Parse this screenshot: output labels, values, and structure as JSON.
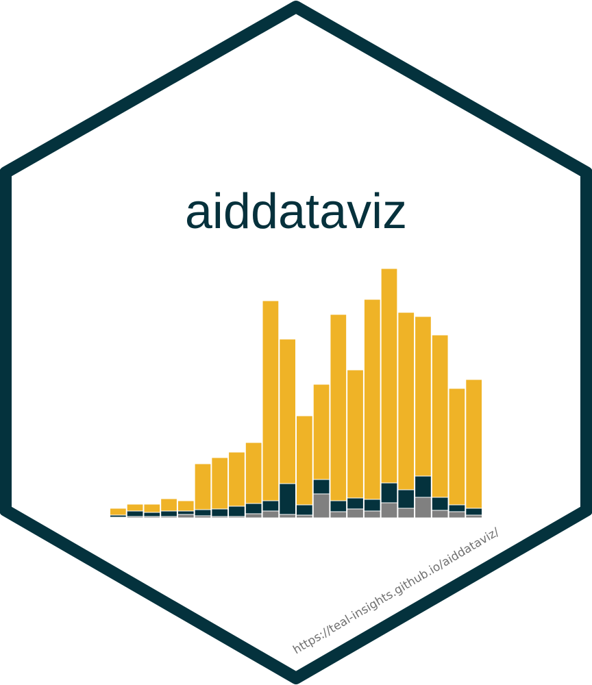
{
  "chart_data": {
    "type": "bar",
    "stacked": true,
    "title": "aiddataviz",
    "annotation": "https://teal-insights.github.io/aiddataviz/",
    "categories": [
      null,
      null,
      null,
      null,
      null,
      null,
      null,
      null,
      null,
      null,
      null,
      null,
      null,
      null,
      null,
      null,
      null,
      null,
      null,
      null,
      null,
      null
    ],
    "series": [
      {
        "color": "#808080",
        "values": [
          1,
          2,
          2,
          2,
          5,
          3,
          2,
          2,
          6,
          10,
          5,
          4,
          35,
          9,
          13,
          10,
          22,
          14,
          30,
          11,
          9,
          4
        ]
      },
      {
        "color": "#04323d",
        "values": [
          3,
          8,
          6,
          8,
          5,
          9,
          11,
          15,
          15,
          15,
          45,
          15,
          21,
          16,
          16,
          17,
          29,
          27,
          31,
          19,
          10,
          10
        ]
      },
      {
        "color": "#efb327",
        "values": [
          10,
          10,
          12,
          18,
          15,
          67,
          75,
          79,
          89,
          292,
          211,
          130,
          139,
          272,
          187,
          292,
          313,
          259,
          233,
          237,
          170,
          188
        ]
      }
    ],
    "ylim": [
      0,
      400
    ]
  }
}
